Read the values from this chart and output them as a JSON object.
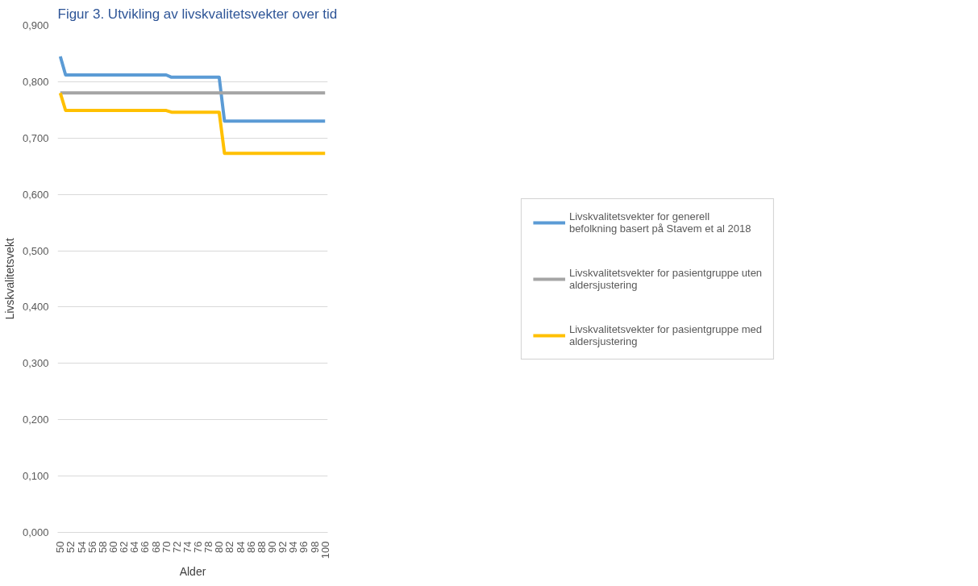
{
  "chart_data": {
    "type": "line",
    "title": "Figur 3. Utvikling av livskvalitetsvekter over tid",
    "xlabel": "Alder",
    "ylabel": "Livskvalitetsvekt",
    "categories": [
      "50",
      null,
      "52",
      null,
      "54",
      null,
      "56",
      null,
      "58",
      null,
      "60",
      null,
      "62",
      null,
      "64",
      null,
      "66",
      null,
      "68",
      null,
      "70",
      null,
      "72",
      null,
      "74",
      null,
      "76",
      null,
      "78",
      null,
      "80",
      null,
      "82",
      null,
      "84",
      null,
      "86",
      null,
      "88",
      null,
      "90",
      null,
      "92",
      null,
      "94",
      null,
      "96",
      null,
      "98",
      null,
      "100"
    ],
    "series": [
      {
        "name": "Livskvalitetsvekter for generell befolkning basert på Stavem et al 2018",
        "color": "#5b9bd5",
        "values": [
          0.845,
          0.812,
          0.812,
          0.812,
          0.812,
          0.812,
          0.812,
          0.812,
          0.812,
          0.812,
          0.812,
          0.812,
          0.812,
          0.812,
          0.812,
          0.812,
          0.812,
          0.812,
          0.812,
          0.812,
          0.812,
          0.808,
          0.808,
          0.808,
          0.808,
          0.808,
          0.808,
          0.808,
          0.808,
          0.808,
          0.808,
          0.73,
          0.73,
          0.73,
          0.73,
          0.73,
          0.73,
          0.73,
          0.73,
          0.73,
          0.73,
          0.73,
          0.73,
          0.73,
          0.73,
          0.73,
          0.73,
          0.73,
          0.73,
          0.73,
          0.73
        ]
      },
      {
        "name": "Livskvalitetsvekter for pasientgruppe uten aldersjustering",
        "color": "#a5a5a5",
        "values": [
          0.78,
          0.78,
          0.78,
          0.78,
          0.78,
          0.78,
          0.78,
          0.78,
          0.78,
          0.78,
          0.78,
          0.78,
          0.78,
          0.78,
          0.78,
          0.78,
          0.78,
          0.78,
          0.78,
          0.78,
          0.78,
          0.78,
          0.78,
          0.78,
          0.78,
          0.78,
          0.78,
          0.78,
          0.78,
          0.78,
          0.78,
          0.78,
          0.78,
          0.78,
          0.78,
          0.78,
          0.78,
          0.78,
          0.78,
          0.78,
          0.78,
          0.78,
          0.78,
          0.78,
          0.78,
          0.78,
          0.78,
          0.78,
          0.78,
          0.78,
          0.78
        ]
      },
      {
        "name": "Livskvalitetsvekter for pasientgruppe med aldersjustering",
        "color": "#ffc000",
        "values": [
          0.78,
          0.749,
          0.749,
          0.749,
          0.749,
          0.749,
          0.749,
          0.749,
          0.749,
          0.749,
          0.749,
          0.749,
          0.749,
          0.749,
          0.749,
          0.749,
          0.749,
          0.749,
          0.749,
          0.749,
          0.749,
          0.746,
          0.746,
          0.746,
          0.746,
          0.746,
          0.746,
          0.746,
          0.746,
          0.746,
          0.746,
          0.673,
          0.673,
          0.673,
          0.673,
          0.673,
          0.673,
          0.673,
          0.673,
          0.673,
          0.673,
          0.673,
          0.673,
          0.673,
          0.673,
          0.673,
          0.673,
          0.673,
          0.673,
          0.673,
          0.673
        ]
      }
    ],
    "ylim": [
      0,
      0.9
    ],
    "yticks": [
      {
        "value": 0,
        "label": "0,000"
      },
      {
        "value": 0.1,
        "label": "0,100"
      },
      {
        "value": 0.2,
        "label": "0,200"
      },
      {
        "value": 0.3,
        "label": "0,300"
      },
      {
        "value": 0.4,
        "label": "0,400"
      },
      {
        "value": 0.5,
        "label": "0,500"
      },
      {
        "value": 0.6,
        "label": "0,600"
      },
      {
        "value": 0.7,
        "label": "0,700"
      },
      {
        "value": 0.8,
        "label": "0,800"
      },
      {
        "value": 0.9,
        "label": "0,900"
      }
    ],
    "grid": "y",
    "legend": "right",
    "marker": "none",
    "line_style": "solid"
  }
}
